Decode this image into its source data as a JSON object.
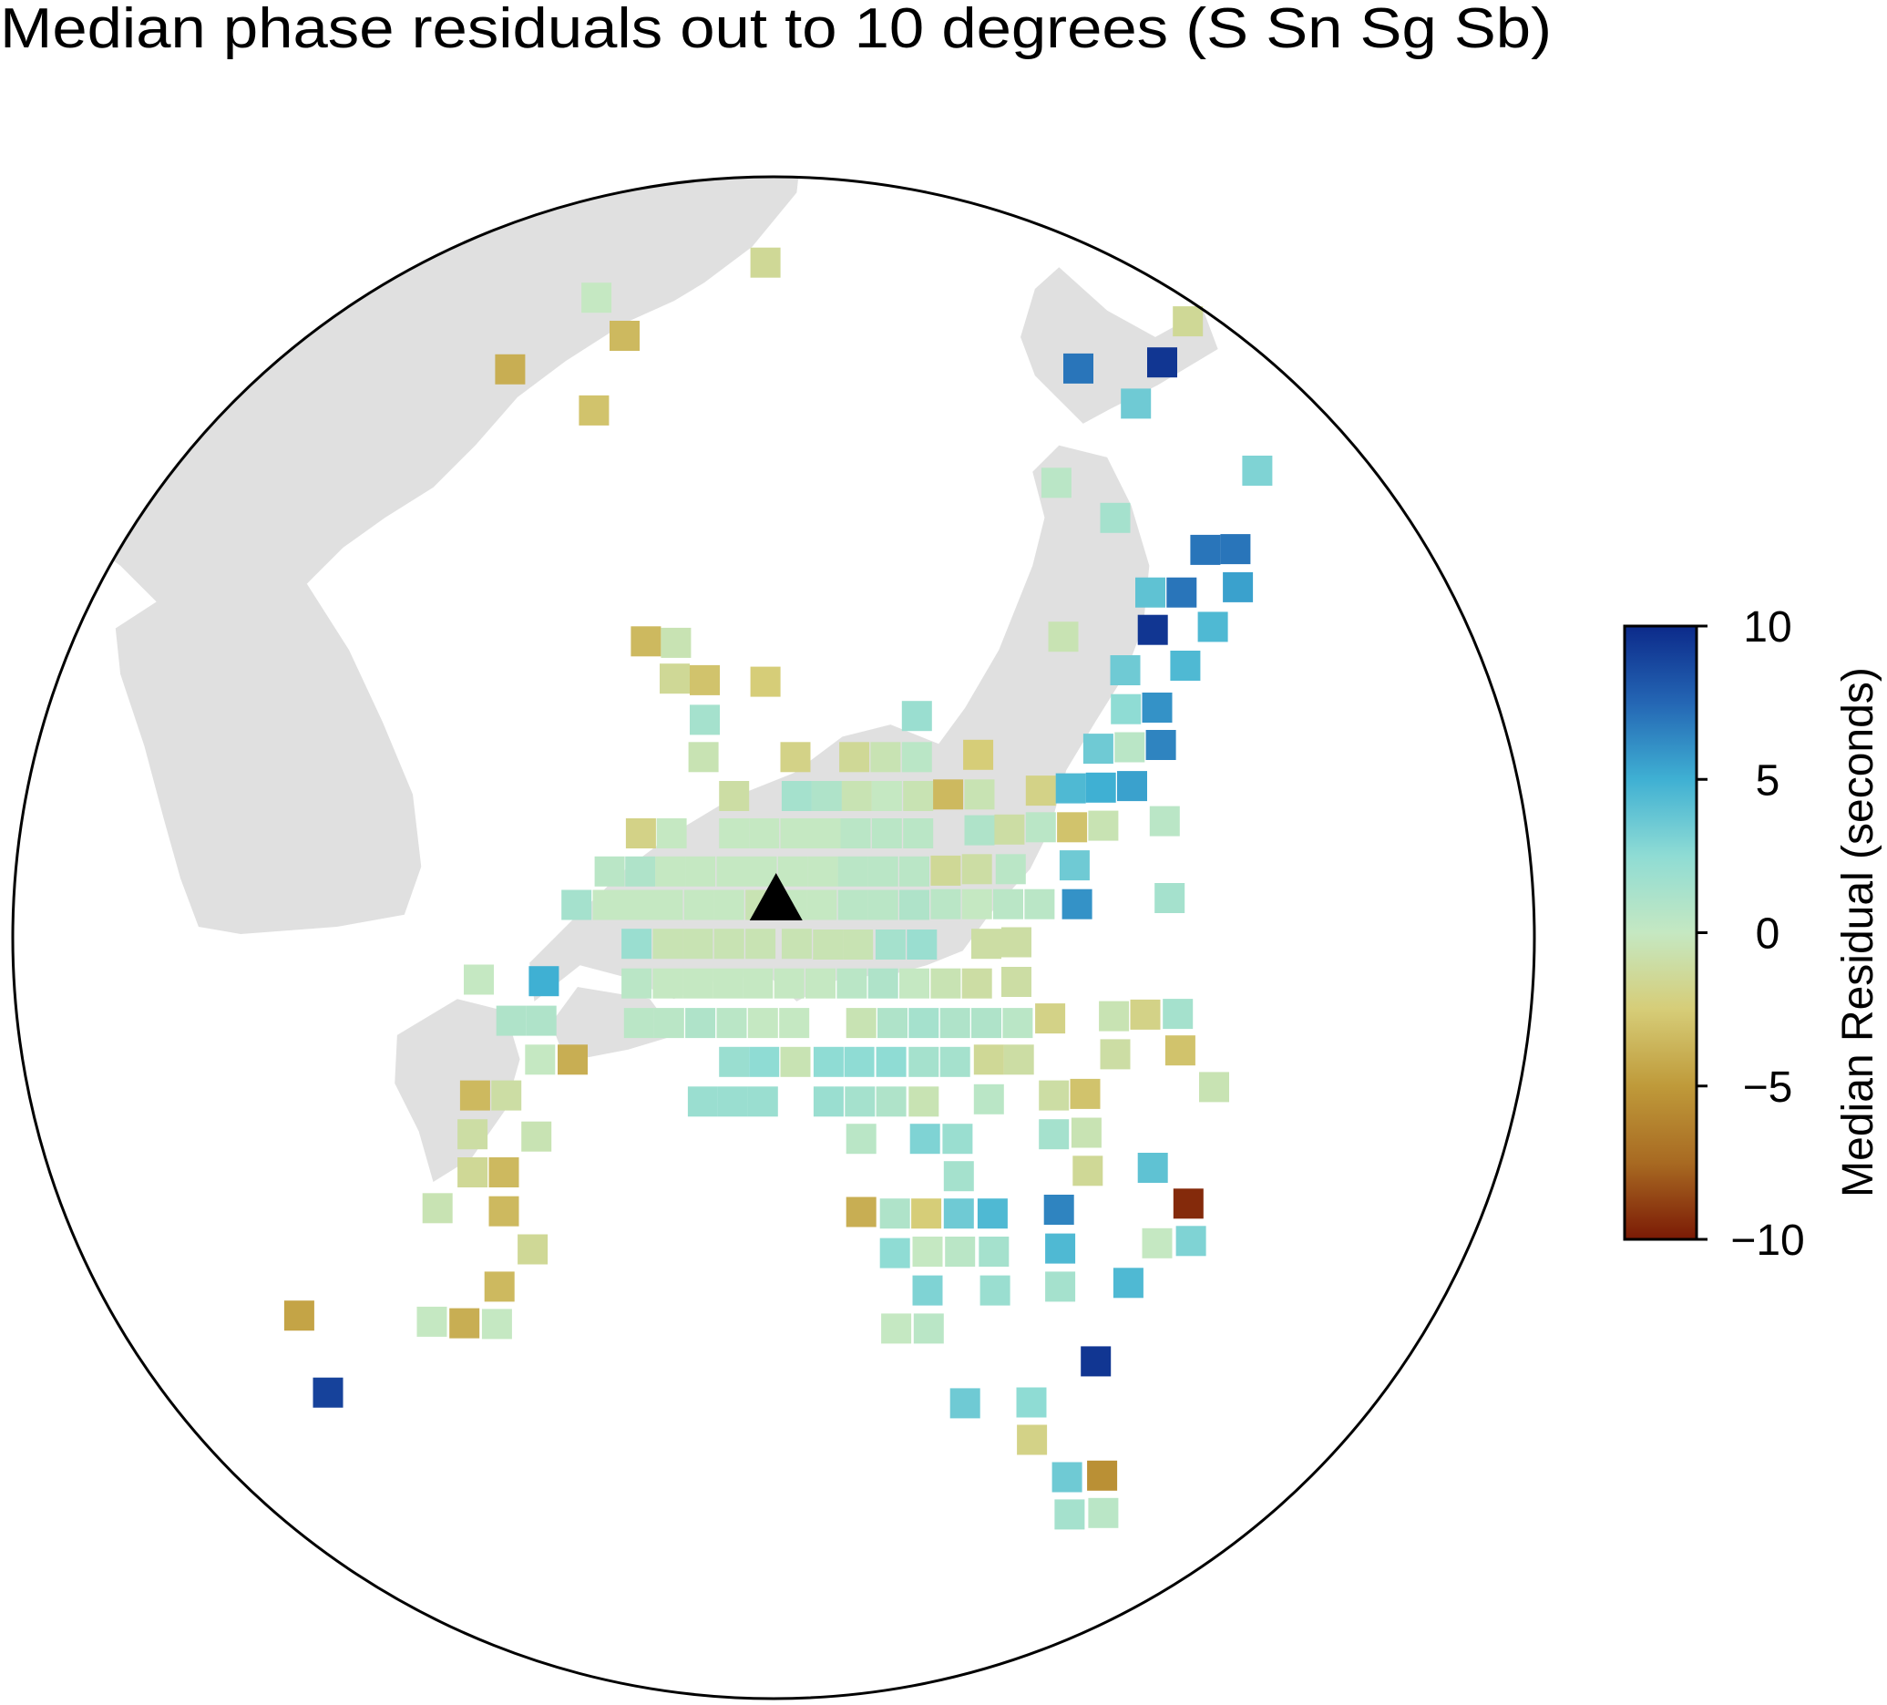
{
  "chart_data": {
    "type": "map",
    "title": "Median phase residuals out to 10 degrees (S Sn Sg Sb)",
    "colorbar_label": "Median Residual (seconds)",
    "clim": [
      -10,
      10
    ],
    "cticks": [
      {
        "value": -10,
        "label": "−10"
      },
      {
        "value": -5,
        "label": "−5"
      },
      0,
      5,
      10
    ],
    "colormap": [
      "#7b1a05",
      "#a86a22",
      "#bf9a3a",
      "#d6cd78",
      "#c5e8c2",
      "#8fdcd4",
      "#3fb0d3",
      "#2466b4",
      "#0c2a8a"
    ],
    "land_color": "#e0e0e0",
    "marker": {
      "lon": 135.84,
      "lat": 34.99
    },
    "lon": [
      135.67,
      132.97,
      133.42,
      131.59,
      132.93,
      142.42,
      140.67,
      142.01,
      141.59,
      143.53,
      140.32,
      141.26,
      142.7,
      143.18,
      141.82,
      142.32,
      143.22,
      141.86,
      142.82,
      140.43,
      133.76,
      134.24,
      134.22,
      134.7,
      135.67,
      141.42,
      142.38,
      134.7,
      138.09,
      141.43,
      141.93,
      134.68,
      136.15,
      137.09,
      137.59,
      138.09,
      139.07,
      140.99,
      141.49,
      141.99,
      135.17,
      136.17,
      136.65,
      137.13,
      137.61,
      138.11,
      138.59,
      139.09,
      140.07,
      140.55,
      141.03,
      141.53,
      133.68,
      134.17,
      135.17,
      135.65,
      136.15,
      136.63,
      137.11,
      137.61,
      138.11,
      139.09,
      139.57,
      140.07,
      140.57,
      141.07,
      142.05,
      133.18,
      133.67,
      134.15,
      134.63,
      135.13,
      135.61,
      136.11,
      136.59,
      137.07,
      137.55,
      138.05,
      138.55,
      139.05,
      139.59,
      140.61,
      132.65,
      133.15,
      133.63,
      134.11,
      134.61,
      135.09,
      135.59,
      136.09,
      136.57,
      137.07,
      137.55,
      138.05,
      138.55,
      139.05,
      139.55,
      140.05,
      140.65,
      142.13,
      133.61,
      134.11,
      134.59,
      135.09,
      135.59,
      136.17,
      136.67,
      137.15,
      137.67,
      138.17,
      139.2,
      139.68,
      131.09,
      132.13,
      133.61,
      134.11,
      134.59,
      135.07,
      135.55,
      136.05,
      136.55,
      137.05,
      137.55,
      138.05,
      138.55,
      139.05,
      139.68,
      131.61,
      132.09,
      133.65,
      134.13,
      134.63,
      135.13,
      135.63,
      136.13,
      137.2,
      137.7,
      138.2,
      138.7,
      139.2,
      139.7,
      140.22,
      141.24,
      141.74,
      142.26,
      132.07,
      132.59,
      135.17,
      135.65,
      136.15,
      136.68,
      137.17,
      137.68,
      138.2,
      138.7,
      139.24,
      139.72,
      141.26,
      142.3,
      131.03,
      131.53,
      134.67,
      135.15,
      135.63,
      136.68,
      137.18,
      137.68,
      138.2,
      139.24,
      140.28,
      140.78,
      142.84,
      130.99,
      132.01,
      137.2,
      138.22,
      138.74,
      140.28,
      140.8,
      130.99,
      131.49,
      138.76,
      140.82,
      141.86,
      130.43,
      131.49,
      137.2,
      137.74,
      138.24,
      138.76,
      139.3,
      140.36,
      142.43,
      131.95,
      137.74,
      138.26,
      138.78,
      139.32,
      140.38,
      141.93,
      142.47,
      131.42,
      138.26,
      139.34,
      140.38,
      141.47,
      128.22,
      130.34,
      130.86,
      131.38,
      137.76,
      138.28,
      140.95,
      128.68,
      138.86,
      139.92,
      139.93,
      140.49,
      141.05,
      140.53,
      141.07
    ],
    "lat": [
      43.36,
      42.9,
      42.4,
      41.96,
      41.42,
      42.59,
      41.97,
      42.05,
      41.51,
      40.63,
      40.47,
      40.01,
      39.59,
      39.6,
      39.03,
      39.03,
      39.1,
      38.54,
      38.58,
      38.45,
      38.39,
      38.37,
      37.9,
      37.88,
      37.86,
      38.01,
      38.07,
      37.36,
      37.41,
      37.5,
      37.52,
      36.87,
      36.87,
      36.87,
      36.87,
      36.87,
      36.9,
      36.98,
      37.0,
      37.03,
      36.36,
      36.36,
      36.36,
      36.36,
      36.36,
      36.36,
      36.38,
      36.38,
      36.43,
      36.46,
      36.47,
      36.49,
      35.87,
      35.87,
      35.87,
      35.87,
      35.87,
      35.87,
      35.87,
      35.87,
      35.87,
      35.91,
      35.92,
      35.95,
      35.95,
      35.97,
      36.03,
      35.37,
      35.37,
      35.37,
      35.37,
      35.37,
      35.37,
      35.37,
      35.37,
      35.37,
      35.37,
      35.37,
      35.38,
      35.4,
      35.4,
      35.45,
      34.93,
      34.93,
      34.93,
      34.93,
      34.93,
      34.93,
      34.93,
      34.93,
      34.93,
      34.93,
      34.93,
      34.93,
      34.94,
      34.94,
      34.94,
      34.94,
      34.94,
      35.02,
      34.42,
      34.42,
      34.42,
      34.42,
      34.42,
      34.42,
      34.41,
      34.41,
      34.41,
      34.41,
      34.42,
      34.44,
      33.95,
      33.93,
      33.9,
      33.9,
      33.9,
      33.9,
      33.9,
      33.9,
      33.9,
      33.9,
      33.9,
      33.9,
      33.9,
      33.9,
      33.92,
      33.41,
      33.41,
      33.38,
      33.38,
      33.38,
      33.38,
      33.38,
      33.38,
      33.38,
      33.38,
      33.38,
      33.38,
      33.38,
      33.38,
      33.44,
      33.47,
      33.49,
      33.5,
      32.9,
      32.9,
      32.87,
      32.87,
      32.87,
      32.87,
      32.87,
      32.87,
      32.87,
      32.87,
      32.9,
      32.9,
      32.97,
      33.02,
      32.43,
      32.43,
      32.35,
      32.35,
      32.35,
      32.35,
      32.35,
      32.35,
      32.35,
      32.38,
      32.43,
      32.45,
      32.54,
      31.92,
      31.89,
      31.86,
      31.86,
      31.86,
      31.92,
      31.94,
      31.42,
      31.42,
      31.37,
      31.44,
      31.48,
      30.95,
      30.91,
      30.9,
      30.88,
      30.88,
      30.88,
      30.88,
      30.93,
      31.01,
      30.41,
      30.36,
      30.38,
      30.38,
      30.38,
      30.42,
      30.49,
      30.52,
      29.92,
      29.87,
      29.87,
      29.92,
      29.97,
      29.54,
      29.46,
      29.44,
      29.43,
      29.37,
      29.37,
      28.94,
      28.53,
      28.39,
      28.4,
      27.91,
      27.42,
      27.44,
      26.93,
      26.95
    ],
    "values": [
      -1.5,
      0,
      -3.5,
      -4,
      -3,
      -1.5,
      7,
      9.5,
      3.5,
      3,
      0.5,
      1.5,
      7,
      7,
      4,
      7,
      5.5,
      9.5,
      4.5,
      -0.5,
      -3.5,
      -0.5,
      -1.5,
      -3,
      -2.5,
      3.5,
      4.5,
      1.5,
      2,
      2.5,
      6,
      -0.5,
      -2,
      -1.5,
      -0.5,
      0.5,
      -2.5,
      3.5,
      0.5,
      6.5,
      -1,
      1.5,
      1,
      -0.5,
      0,
      -0.5,
      -3.5,
      -0.5,
      -2,
      4.5,
      5,
      5.5,
      -2,
      0,
      0,
      0,
      0,
      0,
      0.5,
      0.5,
      0.5,
      1,
      -1,
      0.5,
      -3,
      -0.5,
      0.5,
      0.5,
      1,
      0,
      0,
      0,
      0,
      0,
      0,
      0.5,
      0.5,
      0.5,
      -1.5,
      -1,
      0.5,
      3.5,
      1.5,
      0,
      0,
      0,
      0,
      0,
      -0.5,
      0,
      0,
      0.5,
      0.5,
      1,
      0.5,
      0,
      0.5,
      0.5,
      6,
      1.5,
      2,
      -0.5,
      -0.5,
      -0.5,
      -0.5,
      -0.5,
      -0.5,
      -0.5,
      1.5,
      2,
      -1,
      -1,
      0,
      5,
      0.5,
      0,
      0,
      0,
      0,
      0,
      0,
      0.5,
      1,
      0,
      -0.5,
      -1,
      -1,
      1,
      1,
      0.5,
      0.5,
      1,
      0.5,
      0,
      0,
      -0.5,
      1,
      1.5,
      1,
      1,
      0.5,
      -2,
      -0.5,
      -2,
      1.5,
      0,
      -4,
      2,
      2.5,
      -0.5,
      2.5,
      2.5,
      2.5,
      1.5,
      1.5,
      -1.5,
      -1,
      -1,
      -3,
      -3.5,
      -1,
      2,
      2,
      2,
      2,
      1.5,
      1,
      -0.5,
      0.5,
      -1,
      -3,
      -0.5,
      -1,
      -0.5,
      0.5,
      3,
      2,
      1.5,
      -0.5,
      -1.5,
      -3.5,
      1.5,
      -1.5,
      4,
      -0.5,
      -3.5,
      -4,
      1,
      -2.5,
      3.5,
      4.5,
      6.5,
      -9.5,
      -1.5,
      2.5,
      0,
      0.5,
      1.5,
      4.5,
      0,
      3,
      -3.5,
      3,
      2,
      1.5,
      4.5,
      -4.5,
      0,
      -4,
      0,
      0,
      0.5,
      9.5,
      9,
      3.5,
      2.5,
      -2,
      3.5,
      -5.5,
      1.5,
      0.5
    ]
  }
}
